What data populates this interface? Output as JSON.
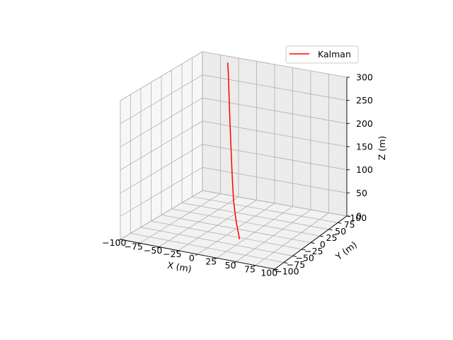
{
  "chart_data": {
    "type": "line3d",
    "title": "",
    "xlabel": "X (m)",
    "ylabel": "Y (m)",
    "zlabel": "Z (m)",
    "xlim": [
      -100,
      100
    ],
    "ylim": [
      -100,
      100
    ],
    "zlim": [
      0,
      300
    ],
    "xticks": [
      -100,
      -75,
      -50,
      -25,
      0,
      25,
      50,
      75,
      100
    ],
    "yticks": [
      -100,
      -75,
      -50,
      -25,
      0,
      25,
      50,
      75,
      100
    ],
    "zticks": [
      0,
      50,
      100,
      150,
      200,
      250,
      300
    ],
    "xtick_labels": [
      "−100",
      "−75",
      "−50",
      "−25",
      "0",
      "25",
      "50",
      "75",
      "100"
    ],
    "ytick_labels": [
      "−100",
      "−75",
      "−50",
      "−25",
      "0",
      "25",
      "50",
      "75",
      "100"
    ],
    "ztick_labels": [
      "0",
      "50",
      "100",
      "150",
      "200",
      "250",
      "300"
    ],
    "grid": true,
    "legend": {
      "entries": [
        "Kalman"
      ],
      "location": "upper right"
    },
    "series": [
      {
        "name": "Kalman",
        "color": "#ff0000",
        "points": [
          {
            "x": 20,
            "y": -30,
            "z": 0
          },
          {
            "x": 17,
            "y": -28,
            "z": 15
          },
          {
            "x": 14,
            "y": -26,
            "z": 30
          },
          {
            "x": 11,
            "y": -24,
            "z": 50
          },
          {
            "x": 8,
            "y": -22,
            "z": 75
          },
          {
            "x": 6,
            "y": -20,
            "z": 100
          },
          {
            "x": 4,
            "y": -18,
            "z": 130
          },
          {
            "x": 2,
            "y": -16,
            "z": 165
          },
          {
            "x": 0,
            "y": -14,
            "z": 200
          },
          {
            "x": -2,
            "y": -12,
            "z": 240
          },
          {
            "x": -4,
            "y": -10,
            "z": 285
          },
          {
            "x": -6,
            "y": -8,
            "z": 330
          },
          {
            "x": -8,
            "y": -6,
            "z": 360
          }
        ]
      }
    ]
  }
}
